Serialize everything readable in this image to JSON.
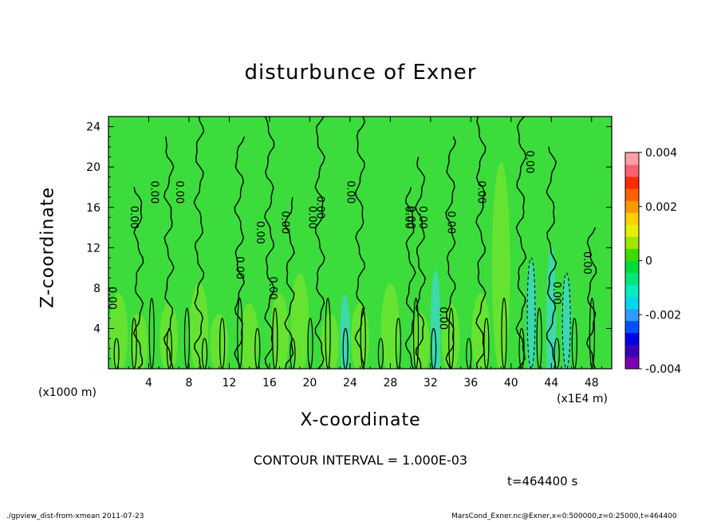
{
  "chart_data": {
    "type": "heatmap",
    "title": "disturbunce of Exner",
    "xlabel": "X-coordinate",
    "ylabel": "Z-coordinate",
    "x_unit_left": "(x1000 m)",
    "x_unit_right": "(x1E4 m)",
    "xlim": [
      0,
      50
    ],
    "ylim": [
      0,
      25
    ],
    "xticks": [
      4,
      8,
      12,
      16,
      20,
      24,
      28,
      32,
      36,
      40,
      44,
      48
    ],
    "yticks": [
      4,
      8,
      12,
      16,
      20,
      24
    ],
    "colorbar": {
      "range": [
        -0.004,
        0.004
      ],
      "tick_labels": [
        "0.004",
        "0.002",
        "0",
        "-0.002",
        "-0.004"
      ],
      "tick_values": [
        0.004,
        0.002,
        0,
        -0.002,
        -0.004
      ],
      "colors": [
        "#7b00b0",
        "#3a00b8",
        "#0000e6",
        "#0050ff",
        "#2f9bff",
        "#00d8f0",
        "#00f0c0",
        "#00e878",
        "#00dc3c",
        "#3cdc00",
        "#a0e600",
        "#e6f000",
        "#ffd000",
        "#ff9900",
        "#ff6000",
        "#ff2a00",
        "#ff6070",
        "#ffa0a8"
      ]
    },
    "contour_labels": [
      "0.00",
      "0.00",
      "0.00",
      "0.00",
      "0.00",
      "0.00",
      "0.00",
      "0.00",
      "0.00",
      "0.00",
      "0.00",
      "0.00",
      "0.00",
      "0.00",
      "0.00",
      "0.00",
      "0.00",
      "0.00",
      "0.00",
      "0.00"
    ],
    "contour_interval_text": "CONTOUR INTERVAL = 1.000E-03",
    "time_text": "t=464400 s"
  },
  "footer": {
    "left": "./gpview_dist-from-xmean 2011-07-23",
    "right": "MarsCond_Exner.nc@Exner,x=0:500000,z=0:25000,t=464400"
  },
  "colors": {
    "field_base": "#3cdc3c",
    "field_light": "#82e82a",
    "field_cyan": "#3cd8d0",
    "contour": "#000000"
  }
}
